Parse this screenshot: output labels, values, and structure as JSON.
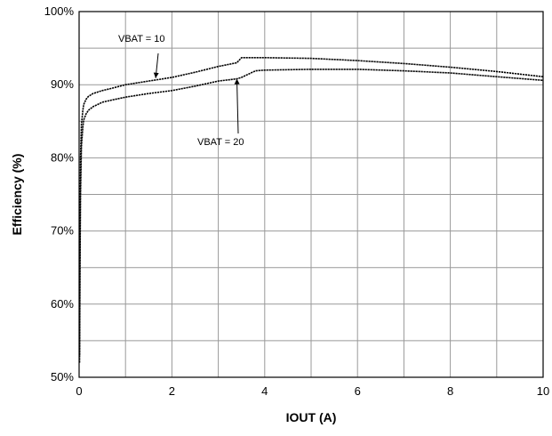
{
  "chart_data": {
    "type": "line",
    "title": "",
    "xlabel": "IOUT (A)",
    "ylabel": "Efficiency (%)",
    "xlim": [
      0,
      10
    ],
    "ylim": [
      50,
      100
    ],
    "x_ticks": [
      0,
      2,
      4,
      6,
      8,
      10
    ],
    "x_tick_labels": [
      "0",
      "2",
      "4",
      "6",
      "8",
      "10"
    ],
    "y_ticks": [
      50,
      60,
      70,
      80,
      90,
      100
    ],
    "y_tick_labels": [
      "50%",
      "60%",
      "70%",
      "80%",
      "90%",
      "100%"
    ],
    "x_minor_step": 1,
    "y_minor_step": 5,
    "grid": true,
    "legend": "none",
    "series": [
      {
        "name": "",
        "x": [
          0.01,
          0.02,
          0.03,
          0.05,
          0.08,
          0.1,
          0.15,
          0.2,
          0.3,
          0.5,
          0.7,
          1.0,
          1.5,
          2.0,
          2.5,
          3.0,
          3.4,
          3.5,
          4.0,
          5.0,
          6.0,
          7.0,
          8.0,
          9.0,
          10.0
        ],
        "y": [
          53,
          72,
          80,
          84.5,
          86.5,
          87.3,
          88,
          88.4,
          88.8,
          89.2,
          89.5,
          90,
          90.5,
          91,
          91.7,
          92.5,
          93,
          93.7,
          93.7,
          93.6,
          93.3,
          92.9,
          92.4,
          91.8,
          91.1
        ]
      },
      {
        "name": "",
        "x": [
          0.01,
          0.02,
          0.03,
          0.05,
          0.08,
          0.1,
          0.15,
          0.2,
          0.3,
          0.5,
          0.7,
          1.0,
          1.5,
          2.0,
          2.5,
          3.0,
          3.4,
          3.5,
          3.8,
          4.0,
          5.0,
          6.0,
          7.0,
          8.0,
          9.0,
          10.0
        ],
        "y": [
          52,
          65,
          75,
          81.5,
          84.2,
          85.2,
          86,
          86.5,
          87,
          87.6,
          87.9,
          88.3,
          88.8,
          89.2,
          89.8,
          90.5,
          90.8,
          91,
          91.9,
          92,
          92.1,
          92.1,
          91.9,
          91.6,
          91.1,
          90.6
        ]
      }
    ],
    "annotations": [
      {
        "text": "VBAT = 10",
        "target_x": 1.65,
        "target_y": 90.9
      },
      {
        "text": "VBAT = 20",
        "target_x": 3.4,
        "target_y": 90.8
      }
    ]
  }
}
